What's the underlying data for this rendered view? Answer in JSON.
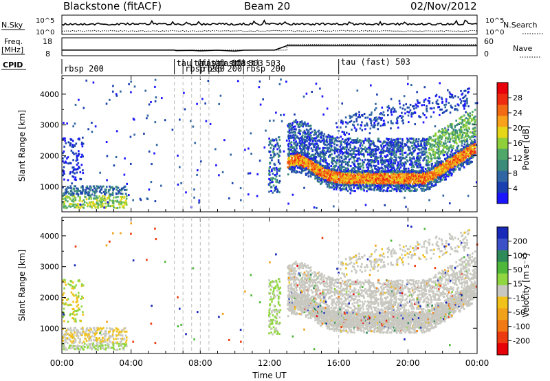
{
  "chart_data": [
    {
      "type": "line",
      "panel": "noise",
      "title": "Blackstone (fitACF)",
      "subtitle": "Beam 20",
      "date": "02/Nov/2012",
      "left_label": "N.Sky",
      "right_label": "N.Search",
      "left_ticks": [
        "10^5",
        "10^0"
      ],
      "right_ticks": [
        "10^5",
        "10^0"
      ]
    },
    {
      "type": "line",
      "panel": "frequency",
      "left_label": "Freq.",
      "left_unit": "[MHz]",
      "right_label": "Nave",
      "left_ticks": [
        "18",
        "8"
      ],
      "right_ticks": [
        "60",
        "0"
      ],
      "series": [
        {
          "values": [
            [
              0,
              10.4
            ],
            [
              6.5,
              10.4
            ],
            [
              6.6,
              10
            ],
            [
              7.5,
              10.2
            ],
            [
              8,
              9.8
            ],
            [
              9,
              10.3
            ],
            [
              10,
              9.6
            ],
            [
              10.5,
              10.3
            ],
            [
              12.3,
              10.4
            ],
            [
              13,
              13.8
            ],
            [
              24,
              13.8
            ]
          ]
        },
        {
          "values": [
            [
              0,
              20
            ],
            [
              13,
              20
            ],
            [
              13,
              40
            ],
            [
              24,
              40
            ]
          ]
        }
      ]
    },
    {
      "type": "table",
      "panel": "cpid",
      "label": "CPID",
      "segments": [
        {
          "start": 0,
          "label": "rbsp 200"
        },
        {
          "start": 6.5,
          "label": "tau (fast) 503"
        },
        {
          "start": 7,
          "label": "rbsp 200"
        },
        {
          "start": 7.5,
          "label": "tau (fast) 503"
        },
        {
          "start": 8,
          "label": "rbsp 200"
        },
        {
          "start": 8.5,
          "label": "tau (fast) 503"
        },
        {
          "start": 10.5,
          "label": "rbsp 200"
        },
        {
          "start": 16,
          "label": "tau (fast) 503"
        }
      ]
    },
    {
      "type": "heatmap",
      "panel": "power",
      "ylabel": "Slant Range [km]",
      "yticks": [
        1000,
        2000,
        3000,
        4000
      ],
      "ylim": [
        180,
        4600
      ],
      "xlim": [
        0,
        24
      ],
      "colorbar": {
        "label": "Power [dB]",
        "ticks": [
          4,
          8,
          12,
          16,
          20,
          24,
          28
        ],
        "range": [
          0,
          32
        ],
        "colors": [
          "#1a14ff",
          "#1a3fb0",
          "#2f66a3",
          "#3b8a7a",
          "#4fa86a",
          "#8fcf3a",
          "#e6d619",
          "#f7a21a",
          "#f26a14",
          "#ee2b10",
          "#e8000a"
        ]
      }
    },
    {
      "type": "heatmap",
      "panel": "velocity",
      "ylabel": "Slant Range [km]",
      "yticks": [
        1000,
        2000,
        3000,
        4000
      ],
      "ylim": [
        180,
        4600
      ],
      "xlim": [
        0,
        24
      ],
      "xticks": [
        "00:00",
        "04:00",
        "08:00",
        "12:00",
        "16:00",
        "20:00",
        "00:00"
      ],
      "xlabel": "Time UT",
      "colorbar": {
        "label": "Velocity [m s⁻¹]",
        "ticks": [
          "200",
          "100",
          "50",
          "15",
          "-15",
          "-50",
          "-100",
          "-200"
        ],
        "colors": [
          "#1a2ab8",
          "#3c50c8",
          "#2f8a5a",
          "#4fb83a",
          "#8fd640",
          "#c8c8c0",
          "#f0c21a",
          "#f2a21a",
          "#f27a14",
          "#ee3a10",
          "#e80008"
        ]
      }
    }
  ]
}
